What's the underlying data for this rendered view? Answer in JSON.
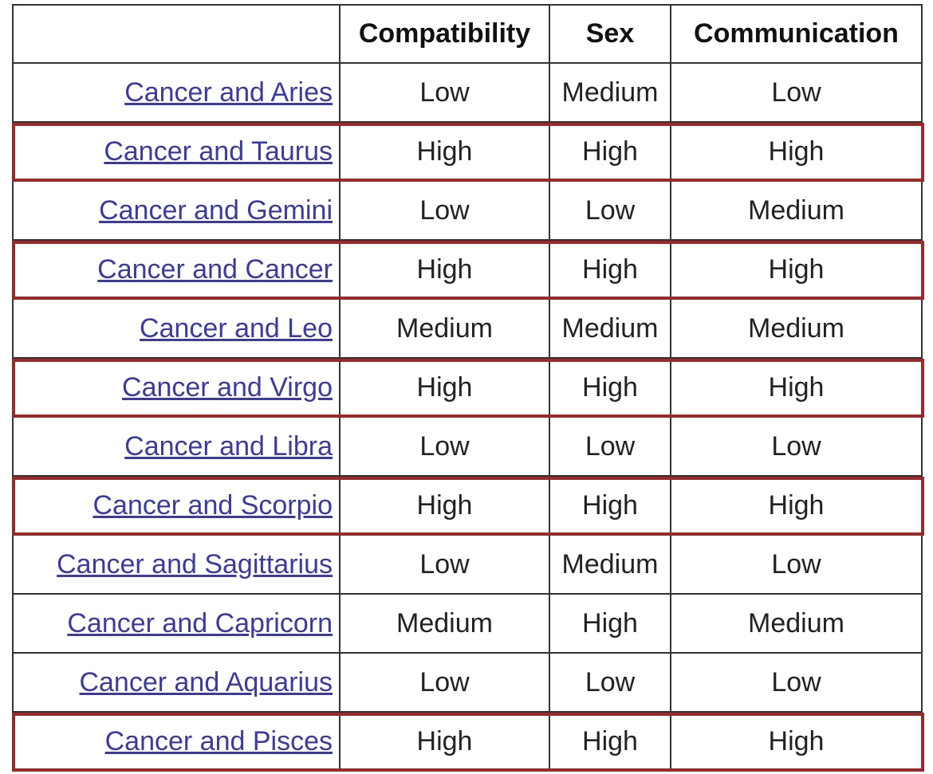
{
  "colors": {
    "link": "#3b3b9e",
    "highlight": "#9a2a2a",
    "grid": "#333333"
  },
  "header": {
    "blank": "",
    "compatibility": "Compatibility",
    "sex": "Sex",
    "communication": "Communication"
  },
  "rows": [
    {
      "pair": "Cancer and Aries",
      "compatibility": "Low",
      "sex": "Medium",
      "communication": "Low",
      "highlighted": false
    },
    {
      "pair": "Cancer and Taurus",
      "compatibility": "High",
      "sex": "High",
      "communication": "High",
      "highlighted": true
    },
    {
      "pair": "Cancer and Gemini",
      "compatibility": "Low",
      "sex": "Low",
      "communication": "Medium",
      "highlighted": false
    },
    {
      "pair": "Cancer and Cancer",
      "compatibility": "High",
      "sex": "High",
      "communication": "High",
      "highlighted": true
    },
    {
      "pair": "Cancer and Leo",
      "compatibility": "Medium",
      "sex": "Medium",
      "communication": "Medium",
      "highlighted": false
    },
    {
      "pair": "Cancer and Virgo",
      "compatibility": "High",
      "sex": "High",
      "communication": "High",
      "highlighted": true
    },
    {
      "pair": "Cancer and Libra",
      "compatibility": "Low",
      "sex": "Low",
      "communication": "Low",
      "highlighted": false
    },
    {
      "pair": "Cancer and Scorpio",
      "compatibility": "High",
      "sex": "High",
      "communication": "High",
      "highlighted": true
    },
    {
      "pair": "Cancer and Sagittarius",
      "compatibility": "Low",
      "sex": "Medium",
      "communication": "Low",
      "highlighted": false
    },
    {
      "pair": "Cancer and Capricorn",
      "compatibility": "Medium",
      "sex": "High",
      "communication": "Medium",
      "highlighted": false
    },
    {
      "pair": "Cancer and Aquarius",
      "compatibility": "Low",
      "sex": "Low",
      "communication": "Low",
      "highlighted": false
    },
    {
      "pair": "Cancer and Pisces",
      "compatibility": "High",
      "sex": "High",
      "communication": "High",
      "highlighted": true
    }
  ]
}
